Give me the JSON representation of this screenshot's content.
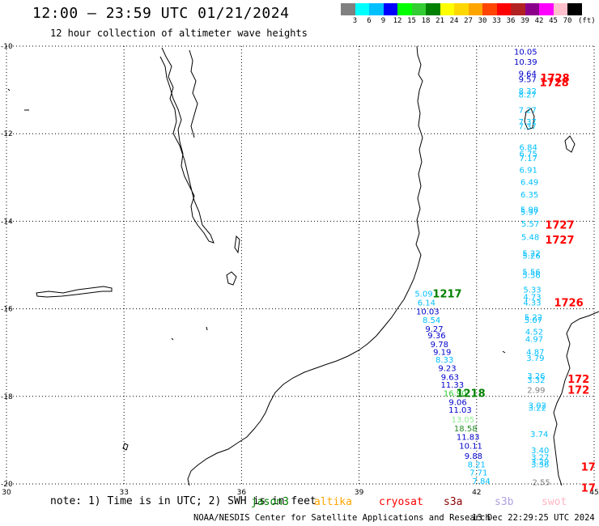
{
  "header": {
    "title": "12:00 – 23:59 UTC 01/21/2024",
    "subtitle": "12 hour collection of altimeter wave heights"
  },
  "colorbar": {
    "colors": [
      "#808080",
      "#00ffff",
      "#00bfff",
      "#0000ff",
      "#00ff00",
      "#32cd32",
      "#008000",
      "#ffff00",
      "#ffd700",
      "#ffa500",
      "#ff4500",
      "#ff0000",
      "#b22222",
      "#8b008b",
      "#ff00ff",
      "#ffc0cb",
      "#000000"
    ],
    "labels": [
      "3",
      "6",
      "9",
      "12",
      "15",
      "18",
      "21",
      "24",
      "27",
      "30",
      "33",
      "36",
      "39",
      "42",
      "45",
      "70"
    ],
    "unit": "(ft)"
  },
  "map": {
    "lat_labels": [
      "-10",
      "-12",
      "-14",
      "-16",
      "-18",
      "-20"
    ],
    "lon_labels": [
      "30",
      "33",
      "36",
      "39",
      "42",
      "45"
    ]
  },
  "chart_data": {
    "type": "scatter",
    "title": "12:00 – 23:59 UTC 01/21/2024",
    "subtitle": "12 hour collection of altimeter wave heights",
    "xlim": [
      30,
      45
    ],
    "ylim": [
      -20,
      -10
    ],
    "unit": "ft",
    "measurements": [
      {
        "lon": 43.25,
        "lat": -10.12,
        "value": "10.05",
        "color": "#0000cd"
      },
      {
        "lon": 43.25,
        "lat": -10.35,
        "value": "10.39",
        "color": "#0000cd"
      },
      {
        "lon": 43.3,
        "lat": -10.62,
        "value": "9.64",
        "color": "#0000cd"
      },
      {
        "lon": 43.3,
        "lat": -10.75,
        "value": "9.57",
        "color": "#0000cd"
      },
      {
        "lon": 43.3,
        "lat": -11.02,
        "value": "8.32",
        "color": "#00bfff"
      },
      {
        "lon": 43.3,
        "lat": -11.1,
        "value": "8.27",
        "color": "#00bfff"
      },
      {
        "lon": 43.3,
        "lat": -11.45,
        "value": "7.27",
        "color": "#00bfff"
      },
      {
        "lon": 43.3,
        "lat": -11.72,
        "value": "7.37",
        "color": "#00bfff"
      },
      {
        "lon": 43.3,
        "lat": -11.82,
        "value": "7.37",
        "color": "#00bfff"
      },
      {
        "lon": 43.32,
        "lat": -12.3,
        "value": "6.84",
        "color": "#00bfff"
      },
      {
        "lon": 43.32,
        "lat": -12.45,
        "value": "6.75",
        "color": "#00bfff"
      },
      {
        "lon": 43.32,
        "lat": -12.55,
        "value": "7.17",
        "color": "#00bfff"
      },
      {
        "lon": 43.32,
        "lat": -12.82,
        "value": "6.91",
        "color": "#00bfff"
      },
      {
        "lon": 43.35,
        "lat": -13.1,
        "value": "6.49",
        "color": "#00bfff"
      },
      {
        "lon": 43.35,
        "lat": -13.38,
        "value": "6.35",
        "color": "#00bfff"
      },
      {
        "lon": 43.35,
        "lat": -13.72,
        "value": "5.98",
        "color": "#00bfff"
      },
      {
        "lon": 43.35,
        "lat": -13.78,
        "value": "5.97",
        "color": "#00bfff"
      },
      {
        "lon": 43.37,
        "lat": -14.05,
        "value": "5.57",
        "color": "#00bfff"
      },
      {
        "lon": 43.37,
        "lat": -14.35,
        "value": "5.48",
        "color": "#00bfff"
      },
      {
        "lon": 43.4,
        "lat": -14.72,
        "value": "5.22",
        "color": "#00bfff"
      },
      {
        "lon": 43.4,
        "lat": -14.78,
        "value": "5.26",
        "color": "#00bfff"
      },
      {
        "lon": 43.4,
        "lat": -15.15,
        "value": "5.56",
        "color": "#00bfff"
      },
      {
        "lon": 43.4,
        "lat": -15.22,
        "value": "5.56",
        "color": "#00bfff"
      },
      {
        "lon": 43.42,
        "lat": -15.55,
        "value": "5.33",
        "color": "#00bfff"
      },
      {
        "lon": 43.42,
        "lat": -15.72,
        "value": "4.73",
        "color": "#00bfff"
      },
      {
        "lon": 43.42,
        "lat": -15.85,
        "value": "4.33",
        "color": "#00bfff"
      },
      {
        "lon": 43.45,
        "lat": -16.18,
        "value": "5.22",
        "color": "#00bfff"
      },
      {
        "lon": 43.45,
        "lat": -16.25,
        "value": "5.07",
        "color": "#00bfff"
      },
      {
        "lon": 43.47,
        "lat": -16.52,
        "value": "4.52",
        "color": "#00bfff"
      },
      {
        "lon": 43.47,
        "lat": -16.68,
        "value": "4.97",
        "color": "#00bfff"
      },
      {
        "lon": 43.5,
        "lat": -16.98,
        "value": "4.87",
        "color": "#00bfff"
      },
      {
        "lon": 43.5,
        "lat": -17.12,
        "value": "3.79",
        "color": "#00bfff"
      },
      {
        "lon": 43.52,
        "lat": -17.52,
        "value": "3.26",
        "color": "#00bfff"
      },
      {
        "lon": 43.52,
        "lat": -17.62,
        "value": "3.32",
        "color": "#00bfff"
      },
      {
        "lon": 43.52,
        "lat": -17.85,
        "value": "2.99",
        "color": "#808080"
      },
      {
        "lon": 43.55,
        "lat": -18.2,
        "value": "3.02",
        "color": "#00bfff"
      },
      {
        "lon": 43.55,
        "lat": -18.25,
        "value": "3.22",
        "color": "#00bfff"
      },
      {
        "lon": 43.6,
        "lat": -18.85,
        "value": "3.74",
        "color": "#00bfff"
      },
      {
        "lon": 43.62,
        "lat": -19.22,
        "value": "3.40",
        "color": "#00bfff"
      },
      {
        "lon": 43.62,
        "lat": -19.38,
        "value": "3.27",
        "color": "#00bfff"
      },
      {
        "lon": 43.62,
        "lat": -19.48,
        "value": "3.29",
        "color": "#00bfff"
      },
      {
        "lon": 43.62,
        "lat": -19.55,
        "value": "3.36",
        "color": "#00bfff"
      },
      {
        "lon": 43.65,
        "lat": -19.95,
        "value": "2.55",
        "color": "#808080"
      },
      {
        "lon": 40.65,
        "lat": -15.65,
        "value": "5.09",
        "color": "#00bfff"
      },
      {
        "lon": 40.72,
        "lat": -15.85,
        "value": "6.14",
        "color": "#00bfff"
      },
      {
        "lon": 40.75,
        "lat": -16.05,
        "value": "10.03",
        "color": "#0000cd"
      },
      {
        "lon": 40.85,
        "lat": -16.25,
        "value": "8.54",
        "color": "#00bfff"
      },
      {
        "lon": 40.92,
        "lat": -16.45,
        "value": "9.27",
        "color": "#0000cd"
      },
      {
        "lon": 40.98,
        "lat": -16.6,
        "value": "9.36",
        "color": "#0000cd"
      },
      {
        "lon": 41.05,
        "lat": -16.8,
        "value": "9.78",
        "color": "#0000cd"
      },
      {
        "lon": 41.12,
        "lat": -16.98,
        "value": "9.19",
        "color": "#0000cd"
      },
      {
        "lon": 41.18,
        "lat": -17.15,
        "value": "8.33",
        "color": "#00bfff"
      },
      {
        "lon": 41.25,
        "lat": -17.35,
        "value": "9.23",
        "color": "#0000cd"
      },
      {
        "lon": 41.32,
        "lat": -17.55,
        "value": "9.63",
        "color": "#0000cd"
      },
      {
        "lon": 41.38,
        "lat": -17.73,
        "value": "11.33",
        "color": "#0000cd"
      },
      {
        "lon": 41.45,
        "lat": -17.92,
        "value": "16.90",
        "color": "#32cd32"
      },
      {
        "lon": 41.52,
        "lat": -18.12,
        "value": "9.06",
        "color": "#0000cd"
      },
      {
        "lon": 41.58,
        "lat": -18.3,
        "value": "11.03",
        "color": "#0000cd"
      },
      {
        "lon": 41.65,
        "lat": -18.52,
        "value": "13.05",
        "color": "#90ee90"
      },
      {
        "lon": 41.72,
        "lat": -18.72,
        "value": "18.58",
        "color": "#228b22"
      },
      {
        "lon": 41.78,
        "lat": -18.92,
        "value": "11.83",
        "color": "#0000cd"
      },
      {
        "lon": 41.85,
        "lat": -19.12,
        "value": "10.11",
        "color": "#0000cd"
      },
      {
        "lon": 41.92,
        "lat": -19.35,
        "value": "9.88",
        "color": "#0000cd"
      },
      {
        "lon": 42.0,
        "lat": -19.55,
        "value": "8.21",
        "color": "#00bfff"
      },
      {
        "lon": 42.05,
        "lat": -19.73,
        "value": "7.71",
        "color": "#00bfff"
      },
      {
        "lon": 42.12,
        "lat": -19.93,
        "value": "7.84",
        "color": "#00bfff"
      }
    ],
    "pass_times": [
      {
        "lon": 44.0,
        "lat": -10.72,
        "value": "1728",
        "color": "#ff0000"
      },
      {
        "lon": 43.98,
        "lat": -10.82,
        "value": "1728",
        "color": "#ff0000"
      },
      {
        "lon": 44.12,
        "lat": -14.08,
        "value": "1727",
        "color": "#ff0000"
      },
      {
        "lon": 44.12,
        "lat": -14.42,
        "value": "1727",
        "color": "#ff0000"
      },
      {
        "lon": 44.35,
        "lat": -15.85,
        "value": "1726",
        "color": "#ff0000"
      },
      {
        "lon": 44.6,
        "lat": -17.6,
        "value": "172",
        "color": "#ff0000"
      },
      {
        "lon": 44.6,
        "lat": -17.85,
        "value": "172",
        "color": "#ff0000"
      },
      {
        "lon": 44.85,
        "lat": -19.6,
        "value": "17",
        "color": "#ff0000"
      },
      {
        "lon": 44.85,
        "lat": -20.08,
        "value": "17",
        "color": "#ff0000"
      },
      {
        "lon": 41.25,
        "lat": -15.65,
        "value": "1217",
        "color": "#008000"
      },
      {
        "lon": 41.85,
        "lat": -17.92,
        "value": "1218",
        "color": "#008000"
      }
    ]
  },
  "legend": {
    "note": "note: 1) Time is in UTC; 2) SWH is in feet",
    "sources": [
      {
        "name": "jason3",
        "color": "#008000"
      },
      {
        "name": "altika",
        "color": "#ffa500"
      },
      {
        "name": "cryosat",
        "color": "#ff0000"
      },
      {
        "name": "s3a",
        "color": "#8b0000"
      },
      {
        "name": "s3b",
        "color": "#b0a0e0"
      },
      {
        "name": "swot",
        "color": "#ffb6c1"
      }
    ]
  },
  "footer": {
    "credit": "NOAA/NESDIS Center for Satellite Applications and Research",
    "timestamp": "13 Dec 22:29:25 UTC 2024"
  }
}
